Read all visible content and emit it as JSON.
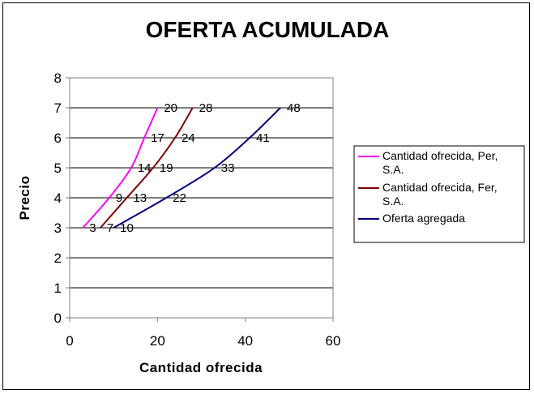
{
  "chart_data": {
    "type": "line",
    "title": "OFERTA ACUMULADA",
    "xlabel": "Cantidad ofrecida",
    "ylabel": "Precio",
    "xlim": [
      0,
      60
    ],
    "ylim": [
      0,
      8
    ],
    "x_ticks": [
      "0",
      "20",
      "40",
      "60"
    ],
    "y_ticks": [
      "0",
      "1",
      "2",
      "3",
      "4",
      "5",
      "6",
      "7",
      "8"
    ],
    "grid": "horizontal",
    "legend_position": "right",
    "series": [
      {
        "name": "Cantidad ofrecida, Per, S.A.",
        "color": "#FF00FF",
        "points": [
          [
            3,
            3
          ],
          [
            9,
            4
          ],
          [
            14,
            5
          ],
          [
            17,
            6
          ],
          [
            20,
            7
          ]
        ],
        "labels": [
          "3",
          "9",
          "14",
          "17",
          "20"
        ]
      },
      {
        "name": "Cantidad ofrecida, Fer, S.A.",
        "color": "#800000",
        "points": [
          [
            7,
            3
          ],
          [
            13,
            4
          ],
          [
            19,
            5
          ],
          [
            24,
            6
          ],
          [
            28,
            7
          ]
        ],
        "labels": [
          "7",
          "13",
          "19",
          "24",
          "28"
        ]
      },
      {
        "name": "Oferta agregada",
        "color": "#000080",
        "points": [
          [
            10,
            3
          ],
          [
            22,
            4
          ],
          [
            33,
            5
          ],
          [
            41,
            6
          ],
          [
            48,
            7
          ]
        ],
        "labels": [
          "10",
          "22",
          "33",
          "41",
          "48"
        ]
      }
    ]
  }
}
